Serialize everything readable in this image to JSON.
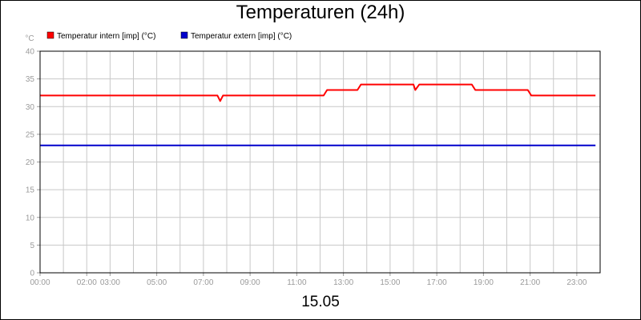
{
  "chart_data": {
    "type": "line",
    "title": "Temperaturen (24h)",
    "ylabel": "°C",
    "xlabel_date": "15.05",
    "ylim": [
      0,
      40
    ],
    "yticks": [
      0,
      5,
      10,
      15,
      20,
      25,
      30,
      35,
      40
    ],
    "x_range_hours": [
      0,
      24
    ],
    "xticks": [
      {
        "hour": 0,
        "label": "00:00"
      },
      {
        "hour": 2,
        "label": "02:00"
      },
      {
        "hour": 3,
        "label": "03:00"
      },
      {
        "hour": 5,
        "label": "05:00"
      },
      {
        "hour": 7,
        "label": "07:00"
      },
      {
        "hour": 9,
        "label": "09:00"
      },
      {
        "hour": 11,
        "label": "11:00"
      },
      {
        "hour": 13,
        "label": "13:00"
      },
      {
        "hour": 15,
        "label": "15:00"
      },
      {
        "hour": 17,
        "label": "17:00"
      },
      {
        "hour": 19,
        "label": "19:00"
      },
      {
        "hour": 21,
        "label": "21:00"
      },
      {
        "hour": 23,
        "label": "23:00"
      }
    ],
    "grid": true,
    "legend_position": "top-left",
    "series": [
      {
        "name": "Temperatur intern [imp] (°C)",
        "color": "#ff0000",
        "points": [
          [
            0,
            32
          ],
          [
            7.6,
            32
          ],
          [
            7.72,
            31
          ],
          [
            7.84,
            32
          ],
          [
            12.15,
            32
          ],
          [
            12.3,
            33
          ],
          [
            13.6,
            33
          ],
          [
            13.75,
            34
          ],
          [
            16.0,
            34
          ],
          [
            16.08,
            33
          ],
          [
            16.25,
            34
          ],
          [
            18.5,
            34
          ],
          [
            18.65,
            33
          ],
          [
            20.9,
            33
          ],
          [
            21.05,
            32
          ],
          [
            23.8,
            32
          ]
        ]
      },
      {
        "name": "Temperatur extern [imp] (°C)",
        "color": "#0000cc",
        "points": [
          [
            0,
            23
          ],
          [
            23.8,
            23
          ]
        ]
      }
    ]
  }
}
